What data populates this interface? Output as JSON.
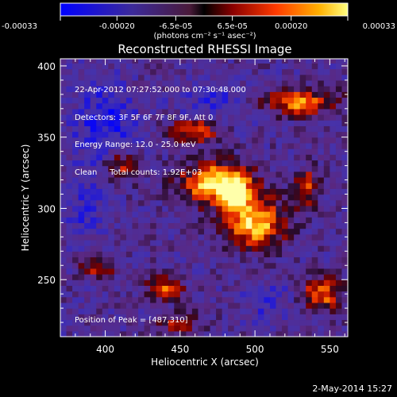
{
  "chart_data": {
    "type": "heatmap",
    "title": "Reconstructed RHESSI Image",
    "xlabel": "Heliocentric X (arcsec)",
    "ylabel": "Heliocentric Y (arcsec)",
    "xlim": [
      370,
      562
    ],
    "ylim": [
      210,
      405
    ],
    "x_ticks": [
      "400",
      "450",
      "500",
      "550"
    ],
    "y_ticks": [
      "250",
      "300",
      "350",
      "400"
    ],
    "x_tick_values": [
      400,
      450,
      500,
      550
    ],
    "y_tick_values": [
      250,
      300,
      350,
      400
    ],
    "colorbar": {
      "ticks": [
        "-0.00033",
        "-0.00020",
        "-6.5e-05",
        "6.5e-05",
        "0.00020",
        "0.00033"
      ],
      "tick_values": [
        -0.00033,
        -0.0002,
        -6.5e-05,
        6.5e-05,
        0.0002,
        0.00033
      ],
      "range": [
        -0.00033,
        0.00033
      ],
      "units_label": "(photons cm-2 s-1 asec-2)"
    },
    "peak": [
      487,
      310
    ],
    "bright_regions": [
      {
        "x": 475,
        "y": 318,
        "sx": 16,
        "sy": 10,
        "amp": 0.95
      },
      {
        "x": 500,
        "y": 290,
        "sx": 14,
        "sy": 12,
        "amp": 0.85
      },
      {
        "x": 487,
        "y": 310,
        "sx": 6,
        "sy": 6,
        "amp": 1.0
      },
      {
        "x": 530,
        "y": 375,
        "sx": 18,
        "sy": 6,
        "amp": 0.7
      },
      {
        "x": 460,
        "y": 355,
        "sx": 12,
        "sy": 6,
        "amp": 0.55
      },
      {
        "x": 545,
        "y": 240,
        "sx": 10,
        "sy": 8,
        "amp": 0.6
      },
      {
        "x": 440,
        "y": 245,
        "sx": 8,
        "sy": 6,
        "amp": 0.55
      },
      {
        "x": 410,
        "y": 330,
        "sx": 8,
        "sy": 8,
        "amp": 0.45
      },
      {
        "x": 395,
        "y": 260,
        "sx": 8,
        "sy": 6,
        "amp": 0.45
      },
      {
        "x": 450,
        "y": 220,
        "sx": 10,
        "sy": 5,
        "amp": 0.4
      },
      {
        "x": 535,
        "y": 315,
        "sx": 6,
        "sy": 10,
        "amp": 0.45
      }
    ],
    "dark_regions": [
      {
        "x": 400,
        "y": 360,
        "sx": 14,
        "sy": 20,
        "amp": 0.9
      },
      {
        "x": 475,
        "y": 375,
        "sx": 18,
        "sy": 10,
        "amp": 0.6
      },
      {
        "x": 510,
        "y": 235,
        "sx": 12,
        "sy": 10,
        "amp": 0.5
      },
      {
        "x": 385,
        "y": 300,
        "sx": 10,
        "sy": 20,
        "amp": 0.5
      }
    ]
  },
  "header": {
    "units_label": "(photons cm⁻² s⁻¹ asec⁻²)"
  },
  "info": {
    "line1": "22-Apr-2012 07:27:52.000 to 07:30:48.000",
    "line2": "Detectors: 3F 5F 6F 7F 8F 9F, Att 0",
    "line3": "Energy Range: 12.0 - 25.0 keV",
    "line4": "Clean     Total counts: 1.92E+03",
    "peak_label": "Position of Peak = [487,310]"
  },
  "footer": {
    "date": "2-May-2014 15:27"
  }
}
